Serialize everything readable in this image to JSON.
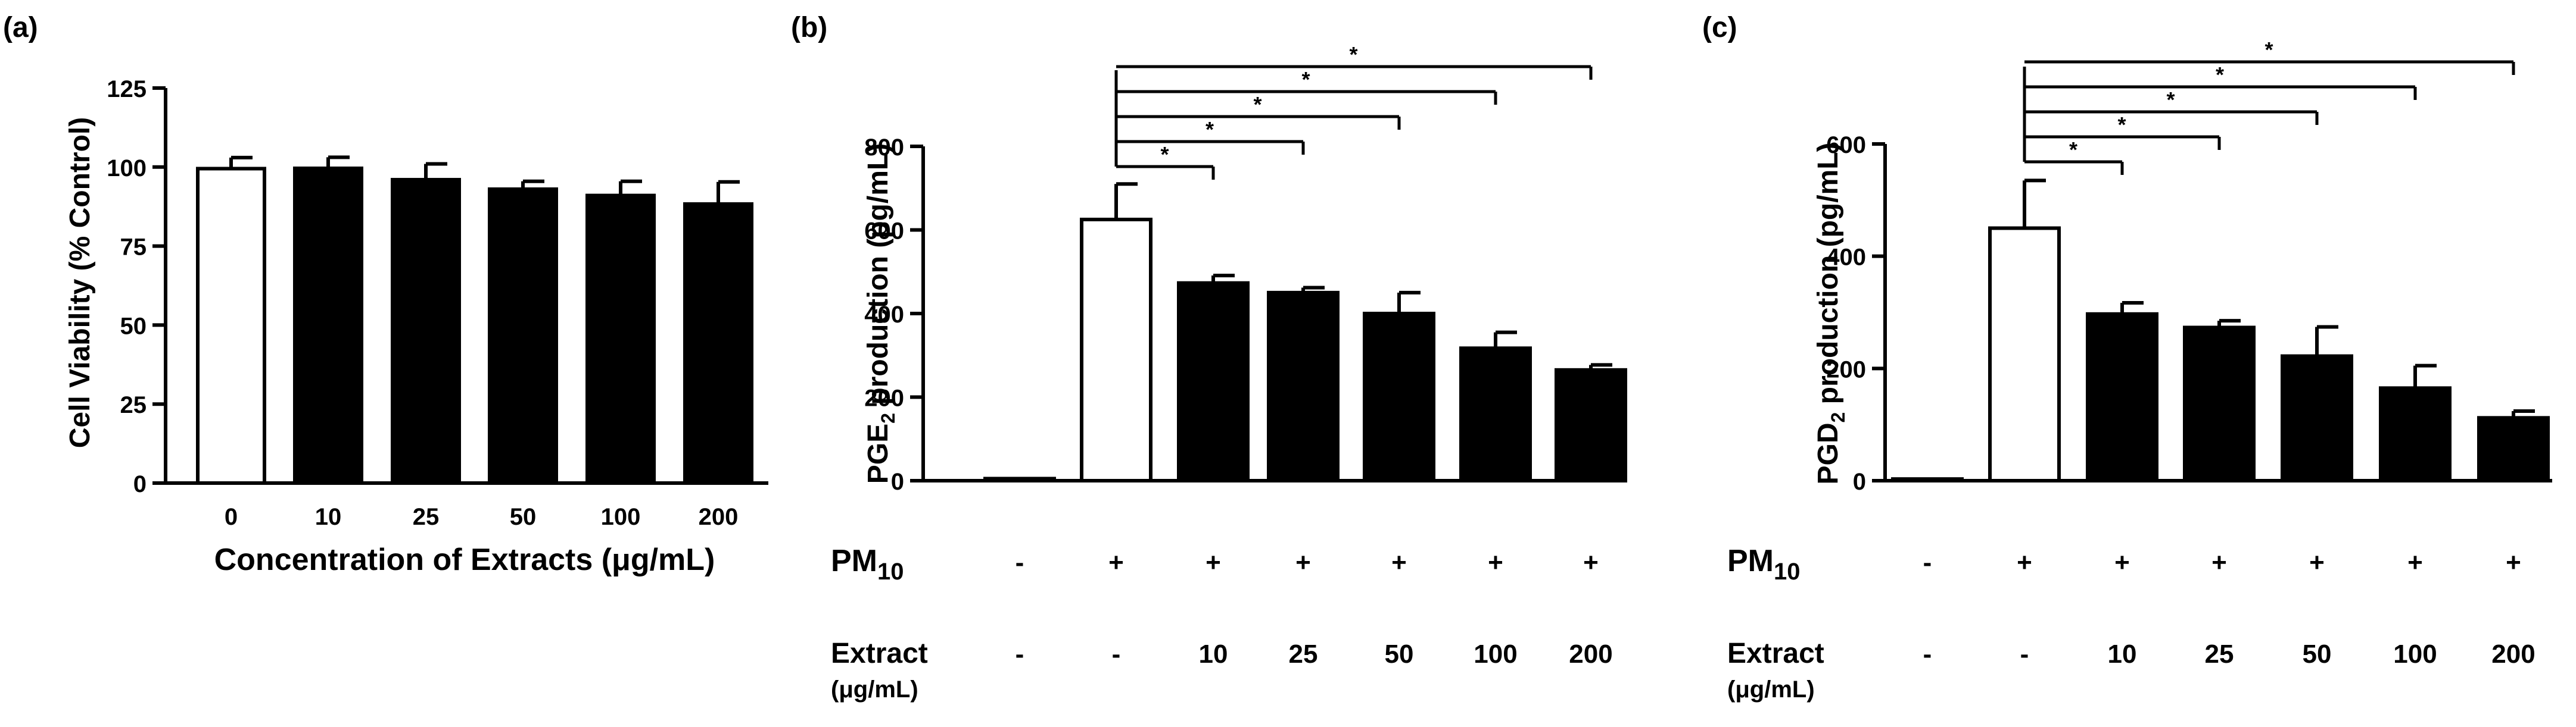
{
  "figure": {
    "background": "#ffffff",
    "bar_fill_control": "#ffffff",
    "bar_fill_treated": "#000000",
    "stroke": "#000000"
  },
  "chart_data": [
    {
      "panel_label": "(a)",
      "type": "bar",
      "categories": [
        "0",
        "10",
        "25",
        "50",
        "100",
        "200"
      ],
      "values": [
        99.5,
        99.6,
        96.0,
        93.0,
        91.0,
        88.3
      ],
      "errors": [
        3.5,
        3.5,
        5.0,
        2.5,
        4.5,
        7.0
      ],
      "bar_fills": [
        "white",
        "black",
        "black",
        "black",
        "black",
        "black"
      ],
      "ylabel": "Cell Viability (% Control)",
      "xlabel": "Concentration of Extracts (μg/mL)",
      "ylim": [
        0,
        125
      ],
      "yticks": [
        0,
        25,
        50,
        75,
        100,
        125
      ],
      "grid": false
    },
    {
      "panel_label": "(b)",
      "type": "bar",
      "categories": [
        "1",
        "2",
        "3",
        "4",
        "5",
        "6",
        "7"
      ],
      "values": [
        5,
        625,
        473,
        450,
        400,
        317,
        265
      ],
      "errors": [
        0,
        85,
        18,
        12,
        50,
        38,
        12
      ],
      "bar_fills": [
        "white",
        "white",
        "black",
        "black",
        "black",
        "black",
        "black"
      ],
      "ylabel_prefix": "PGE",
      "ylabel_sub": "2",
      "ylabel_suffix": " production (pg/mL)",
      "ylim": [
        0,
        800
      ],
      "yticks": [
        0,
        200,
        400,
        600,
        800
      ],
      "grid": false,
      "significance": {
        "from": 1,
        "to": [
          2,
          3,
          4,
          5,
          6
        ],
        "mark": "*"
      },
      "table": {
        "row1_label": "PM",
        "row1_sub": "10",
        "row1_values": [
          "-",
          "+",
          "+",
          "+",
          "+",
          "+",
          "+"
        ],
        "row2_label": "Extract",
        "row2_unit": "(μg/mL)",
        "row2_values": [
          "-",
          "-",
          "10",
          "25",
          "50",
          "100",
          "200"
        ]
      }
    },
    {
      "panel_label": "(c)",
      "type": "bar",
      "categories": [
        "1",
        "2",
        "3",
        "4",
        "5",
        "6",
        "7"
      ],
      "values": [
        3,
        450,
        297,
        273,
        222,
        165,
        112
      ],
      "errors": [
        0,
        85,
        20,
        12,
        52,
        40,
        12
      ],
      "bar_fills": [
        "white",
        "white",
        "black",
        "black",
        "black",
        "black",
        "black"
      ],
      "ylabel_prefix": "PGD",
      "ylabel_sub": "2",
      "ylabel_suffix": " production (pg/mL)",
      "ylim": [
        0,
        600
      ],
      "yticks": [
        0,
        200,
        400,
        600
      ],
      "grid": false,
      "significance": {
        "from": 1,
        "to": [
          2,
          3,
          4,
          5,
          6
        ],
        "mark": "*"
      },
      "table": {
        "row1_label": "PM",
        "row1_sub": "10",
        "row1_values": [
          "-",
          "+",
          "+",
          "+",
          "+",
          "+",
          "+"
        ],
        "row2_label": "Extract",
        "row2_unit": "(μg/mL)",
        "row2_values": [
          "-",
          "-",
          "10",
          "25",
          "50",
          "100",
          "200"
        ]
      }
    }
  ]
}
